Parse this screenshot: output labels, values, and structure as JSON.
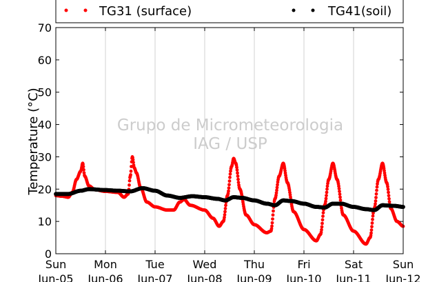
{
  "chart_data": {
    "type": "scatter",
    "title": "",
    "xlabel": "",
    "ylabel": "Temperature (°C)",
    "ylim": [
      0,
      70
    ],
    "yticks": [
      0,
      10,
      20,
      30,
      40,
      50,
      60,
      70
    ],
    "xlim": [
      "2016-06-05",
      "2016-06-12"
    ],
    "xtick_labels": [
      {
        "day": "Sun",
        "date": "Jun-05"
      },
      {
        "day": "Mon",
        "date": "Jun-06"
      },
      {
        "day": "Tue",
        "date": "Jun-07"
      },
      {
        "day": "Wed",
        "date": "Jun-08"
      },
      {
        "day": "Thu",
        "date": "Jun-09"
      },
      {
        "day": "Fri",
        "date": "Jun-10"
      },
      {
        "day": "Sat",
        "date": "Jun-11"
      },
      {
        "day": "Sun",
        "date": "Jun-12"
      }
    ],
    "grid": "vertical",
    "legend_position": "top (above plot)",
    "watermark": [
      "Grupo de Micrometeorologia",
      "IAG / USP"
    ],
    "series": [
      {
        "name": "TG31 (surface)",
        "color": "#ff0000",
        "points": [
          [
            "2016-06-05 00:00",
            18.0
          ],
          [
            "2016-06-05 03:00",
            17.8
          ],
          [
            "2016-06-05 06:00",
            17.5
          ],
          [
            "2016-06-05 08:00",
            19.0
          ],
          [
            "2016-06-05 10:00",
            23.0
          ],
          [
            "2016-06-05 12:00",
            25.5
          ],
          [
            "2016-06-05 13:00",
            28.0
          ],
          [
            "2016-06-05 14:00",
            24.0
          ],
          [
            "2016-06-05 16:00",
            21.0
          ],
          [
            "2016-06-05 19:00",
            19.8
          ],
          [
            "2016-06-06 00:00",
            19.3
          ],
          [
            "2016-06-06 06:00",
            19.0
          ],
          [
            "2016-06-06 09:00",
            17.5
          ],
          [
            "2016-06-06 11:00",
            18.5
          ],
          [
            "2016-06-06 12:00",
            24.0
          ],
          [
            "2016-06-06 13:00",
            30.0
          ],
          [
            "2016-06-06 14:00",
            26.5
          ],
          [
            "2016-06-06 15:00",
            25.0
          ],
          [
            "2016-06-06 17:00",
            20.5
          ],
          [
            "2016-06-06 20:00",
            16.0
          ],
          [
            "2016-06-07 00:00",
            14.5
          ],
          [
            "2016-06-07 06:00",
            13.5
          ],
          [
            "2016-06-07 09:00",
            13.5
          ],
          [
            "2016-06-07 12:00",
            16.0
          ],
          [
            "2016-06-07 14:00",
            16.8
          ],
          [
            "2016-06-07 17:00",
            15.0
          ],
          [
            "2016-06-08 00:00",
            13.5
          ],
          [
            "2016-06-08 04:00",
            11.0
          ],
          [
            "2016-06-08 07:00",
            8.5
          ],
          [
            "2016-06-08 09:00",
            10.0
          ],
          [
            "2016-06-08 11:00",
            18.0
          ],
          [
            "2016-06-08 13:00",
            27.0
          ],
          [
            "2016-06-08 14:00",
            29.5
          ],
          [
            "2016-06-08 15:00",
            28.0
          ],
          [
            "2016-06-08 17:00",
            20.0
          ],
          [
            "2016-06-08 20:00",
            12.0
          ],
          [
            "2016-06-09 00:00",
            9.0
          ],
          [
            "2016-06-09 06:00",
            6.5
          ],
          [
            "2016-06-09 08:00",
            7.0
          ],
          [
            "2016-06-09 10:00",
            17.0
          ],
          [
            "2016-06-09 12:00",
            24.0
          ],
          [
            "2016-06-09 14:00",
            28.0
          ],
          [
            "2016-06-09 16:00",
            22.0
          ],
          [
            "2016-06-09 19:00",
            13.0
          ],
          [
            "2016-06-10 00:00",
            7.5
          ],
          [
            "2016-06-10 06:00",
            4.0
          ],
          [
            "2016-06-10 08:00",
            6.0
          ],
          [
            "2016-06-10 10:00",
            15.0
          ],
          [
            "2016-06-10 12:00",
            23.0
          ],
          [
            "2016-06-10 14:00",
            28.0
          ],
          [
            "2016-06-10 16:00",
            23.0
          ],
          [
            "2016-06-10 19:00",
            12.0
          ],
          [
            "2016-06-11 00:00",
            7.0
          ],
          [
            "2016-06-11 06:00",
            3.0
          ],
          [
            "2016-06-11 08:00",
            5.0
          ],
          [
            "2016-06-11 10:00",
            14.0
          ],
          [
            "2016-06-11 12:00",
            23.0
          ],
          [
            "2016-06-11 14:00",
            28.0
          ],
          [
            "2016-06-11 16:00",
            22.0
          ],
          [
            "2016-06-11 18:00",
            14.0
          ],
          [
            "2016-06-11 21:00",
            10.0
          ],
          [
            "2016-06-12 00:00",
            8.5
          ]
        ]
      },
      {
        "name": "TG41(soil)",
        "color": "#000000",
        "points": [
          [
            "2016-06-05 00:00",
            18.5
          ],
          [
            "2016-06-05 06:00",
            18.5
          ],
          [
            "2016-06-05 12:00",
            19.5
          ],
          [
            "2016-06-05 16:00",
            20.0
          ],
          [
            "2016-06-06 00:00",
            19.7
          ],
          [
            "2016-06-06 06:00",
            19.5
          ],
          [
            "2016-06-06 12:00",
            19.3
          ],
          [
            "2016-06-06 18:00",
            20.3
          ],
          [
            "2016-06-07 00:00",
            19.5
          ],
          [
            "2016-06-07 06:00",
            18.0
          ],
          [
            "2016-06-07 12:00",
            17.3
          ],
          [
            "2016-06-07 18:00",
            17.8
          ],
          [
            "2016-06-08 00:00",
            17.5
          ],
          [
            "2016-06-08 06:00",
            17.0
          ],
          [
            "2016-06-08 10:00",
            16.5
          ],
          [
            "2016-06-08 14:00",
            17.5
          ],
          [
            "2016-06-08 18:00",
            17.3
          ],
          [
            "2016-06-09 00:00",
            16.5
          ],
          [
            "2016-06-09 06:00",
            15.5
          ],
          [
            "2016-06-09 10:00",
            15.0
          ],
          [
            "2016-06-09 14:00",
            16.5
          ],
          [
            "2016-06-09 18:00",
            16.3
          ],
          [
            "2016-06-10 00:00",
            15.5
          ],
          [
            "2016-06-10 06:00",
            14.5
          ],
          [
            "2016-06-10 10:00",
            14.3
          ],
          [
            "2016-06-10 14:00",
            15.5
          ],
          [
            "2016-06-10 18:00",
            15.5
          ],
          [
            "2016-06-11 00:00",
            14.5
          ],
          [
            "2016-06-11 06:00",
            13.8
          ],
          [
            "2016-06-11 10:00",
            13.5
          ],
          [
            "2016-06-11 14:00",
            15.0
          ],
          [
            "2016-06-11 20:00",
            14.8
          ],
          [
            "2016-06-12 00:00",
            14.5
          ]
        ]
      }
    ]
  }
}
